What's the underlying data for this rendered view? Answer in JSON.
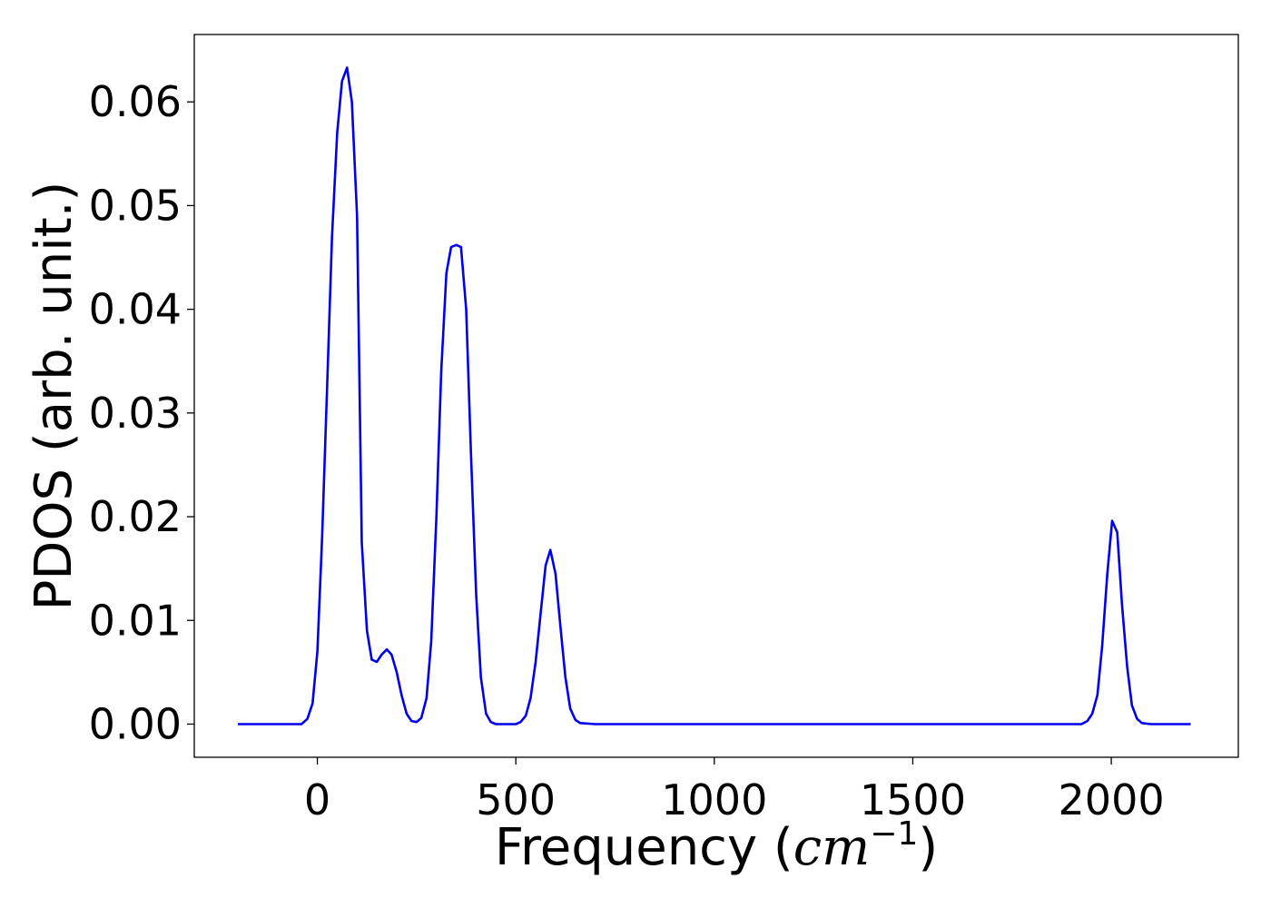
{
  "chart_data": {
    "type": "line",
    "xlabel": "Frequency (cm⁻¹)",
    "xlabel_parts": {
      "prefix": "Frequency (",
      "unit_base": "cm",
      "unit_exp": "−1",
      "suffix": ")"
    },
    "ylabel": "PDOS (arb. unit.)",
    "xlim": [
      -310,
      2320
    ],
    "ylim": [
      -0.0032,
      0.0665
    ],
    "xticks": [
      0,
      500,
      1000,
      1500,
      2000
    ],
    "xtick_labels": [
      "0",
      "500",
      "1000",
      "1500",
      "2000"
    ],
    "yticks": [
      0.0,
      0.01,
      0.02,
      0.03,
      0.04,
      0.05,
      0.06
    ],
    "ytick_labels": [
      "0.00",
      "0.01",
      "0.02",
      "0.03",
      "0.04",
      "0.05",
      "0.06"
    ],
    "grid": false,
    "legend": false,
    "series": [
      {
        "color": "#0000ee",
        "x": [
          -200,
          -40,
          -25,
          -12,
          0,
          12,
          25,
          37,
          50,
          62,
          75,
          87,
          100,
          112,
          125,
          137,
          150,
          162,
          175,
          187,
          200,
          212,
          225,
          237,
          250,
          262,
          275,
          287,
          300,
          312,
          325,
          337,
          350,
          362,
          375,
          387,
          400,
          412,
          425,
          437,
          450,
          500,
          512,
          525,
          537,
          550,
          562,
          575,
          587,
          600,
          612,
          625,
          637,
          650,
          662,
          700,
          1900,
          1925,
          1940,
          1952,
          1965,
          1977,
          1990,
          2002,
          2015,
          2027,
          2040,
          2052,
          2065,
          2077,
          2100,
          2200
        ],
        "y": [
          0.0,
          0.0,
          0.0005,
          0.002,
          0.007,
          0.018,
          0.033,
          0.047,
          0.057,
          0.062,
          0.0633,
          0.06,
          0.049,
          0.0175,
          0.009,
          0.0062,
          0.006,
          0.0067,
          0.0072,
          0.0067,
          0.005,
          0.0028,
          0.001,
          0.0003,
          0.0002,
          0.0006,
          0.0025,
          0.008,
          0.02,
          0.034,
          0.0435,
          0.046,
          0.0462,
          0.046,
          0.04,
          0.026,
          0.0125,
          0.0045,
          0.001,
          0.0002,
          0.0,
          0.0,
          0.0002,
          0.0008,
          0.0025,
          0.006,
          0.0105,
          0.0153,
          0.0168,
          0.0145,
          0.0095,
          0.0045,
          0.0015,
          0.0004,
          0.0001,
          0.0,
          0.0,
          0.0,
          0.0003,
          0.001,
          0.0028,
          0.0075,
          0.0145,
          0.0196,
          0.0185,
          0.0115,
          0.0055,
          0.0018,
          0.0005,
          0.0001,
          0.0,
          0.0
        ]
      }
    ]
  }
}
